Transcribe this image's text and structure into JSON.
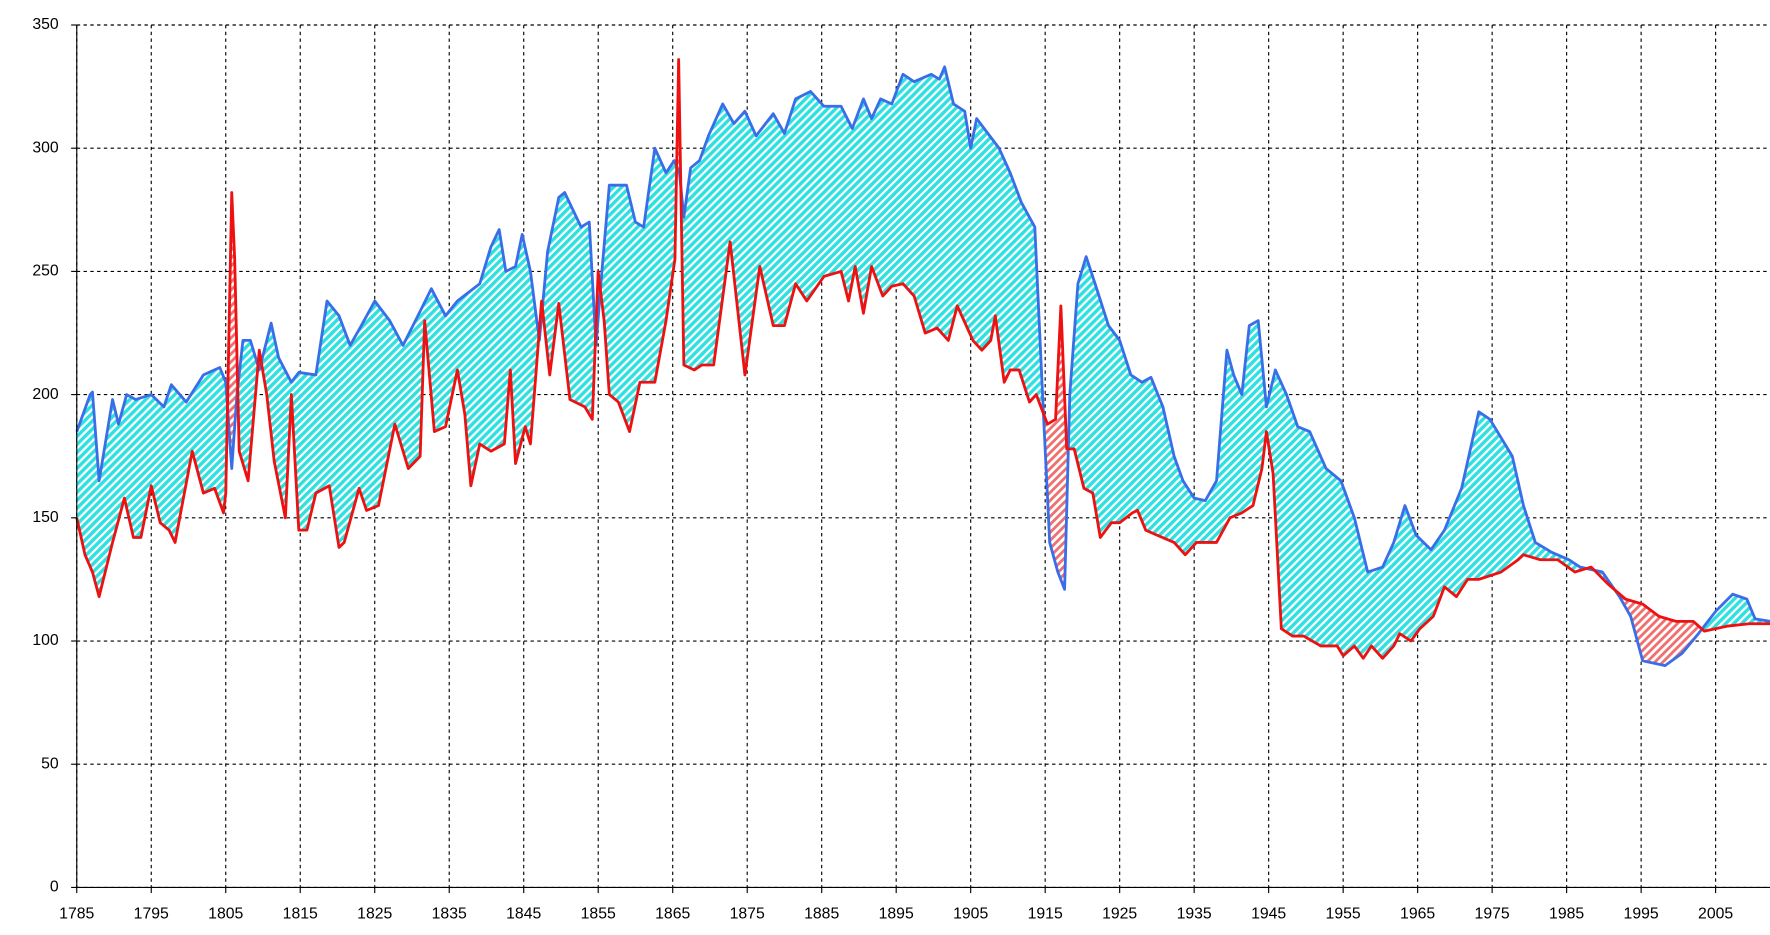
{
  "chart_data": {
    "type": "line",
    "xlim": [
      1785,
      2012.3
    ],
    "ylim": [
      0,
      350
    ],
    "xticks": [
      1785,
      1795,
      1805,
      1815,
      1825,
      1835,
      1845,
      1855,
      1865,
      1875,
      1885,
      1895,
      1905,
      1915,
      1925,
      1935,
      1945,
      1955,
      1965,
      1975,
      1985,
      1995,
      2005
    ],
    "yticks": [
      0,
      50,
      100,
      150,
      200,
      250,
      300,
      350
    ],
    "grid": true,
    "grid_style": "dashed",
    "fill_between": {
      "above_color": "#2ee0e0",
      "below_color": "#f07070"
    },
    "series": [
      {
        "color": "#3a6ee8",
        "x": [
          1785.0,
          1786.8,
          1787.1,
          1788.0,
          1789.8,
          1790.6,
          1791.7,
          1792.9,
          1795.0,
          1796.7,
          1797.7,
          1799.7,
          1802.0,
          1804.2,
          1805.0,
          1805.8,
          1806.5,
          1807.3,
          1808.3,
          1809.5,
          1811.1,
          1812.1,
          1813.8,
          1814.8,
          1817.1,
          1818.6,
          1820.2,
          1821.7,
          1823.2,
          1825.0,
          1827.0,
          1828.8,
          1830.8,
          1832.6,
          1834.5,
          1836.1,
          1839.1,
          1840.6,
          1841.7,
          1842.6,
          1843.9,
          1844.8,
          1845.9,
          1847.1,
          1848.2,
          1849.7,
          1850.5,
          1852.7,
          1853.8,
          1854.7,
          1855.5,
          1856.5,
          1858.8,
          1860.0,
          1861.1,
          1862.6,
          1864.1,
          1865.2,
          1865.9,
          1866.5,
          1867.4,
          1868.6,
          1869.8,
          1871.7,
          1873.2,
          1874.7,
          1876.2,
          1878.5,
          1880.0,
          1881.5,
          1883.5,
          1885.3,
          1887.6,
          1889.1,
          1890.6,
          1891.7,
          1892.9,
          1894.4,
          1895.9,
          1897.4,
          1899.7,
          1900.8,
          1901.5,
          1902.7,
          1904.2,
          1905.0,
          1905.8,
          1907.3,
          1908.8,
          1910.3,
          1911.8,
          1913.6,
          1914.8,
          1915.6,
          1916.7,
          1917.6,
          1918.3,
          1919.4,
          1920.5,
          1921.7,
          1923.5,
          1925.0,
          1926.5,
          1928.0,
          1929.2,
          1930.8,
          1932.3,
          1933.5,
          1935.0,
          1936.5,
          1938.0,
          1939.4,
          1940.3,
          1941.4,
          1942.4,
          1943.6,
          1944.7,
          1945.9,
          1947.4,
          1948.9,
          1950.5,
          1952.7,
          1954.7,
          1956.5,
          1958.3,
          1960.3,
          1961.8,
          1963.3,
          1964.8,
          1966.8,
          1968.6,
          1970.9,
          1973.2,
          1974.7,
          1977.7,
          1979.2,
          1980.8,
          1983.0,
          1985.3,
          1986.8,
          1989.8,
          1992.1,
          1993.6,
          1995.2,
          1998.2,
          2000.5,
          2002.7,
          2005.0,
          2007.3,
          2009.2,
          2010.3,
          2012.3
        ],
        "values": [
          185,
          200,
          201,
          165,
          198,
          188,
          200,
          198,
          200,
          195,
          204,
          197,
          208,
          211,
          205,
          170,
          200,
          222,
          222,
          210,
          229,
          215,
          205,
          209,
          208,
          238,
          232,
          220,
          228,
          238,
          230,
          220,
          232,
          243,
          232,
          238,
          245,
          260,
          267,
          250,
          252,
          265,
          250,
          222,
          258,
          280,
          282,
          268,
          270,
          220,
          250,
          285,
          285,
          270,
          268,
          300,
          290,
          295,
          290,
          272,
          292,
          295,
          305,
          318,
          310,
          315,
          305,
          314,
          306,
          320,
          323,
          317,
          317,
          308,
          320,
          312,
          320,
          318,
          330,
          327,
          330,
          328,
          333,
          318,
          315,
          300,
          312,
          306,
          300,
          290,
          278,
          268,
          190,
          140,
          128,
          121,
          200,
          245,
          256,
          245,
          228,
          222,
          208,
          205,
          207,
          195,
          175,
          165,
          158,
          157,
          165,
          218,
          208,
          200,
          228,
          230,
          195,
          210,
          200,
          187,
          185,
          170,
          165,
          150,
          128,
          130,
          140,
          155,
          143,
          137,
          145,
          162,
          193,
          190,
          175,
          155,
          140,
          136,
          133,
          130,
          128,
          118,
          110,
          92,
          90,
          95,
          103,
          112,
          119,
          117,
          109,
          108
        ]
      },
      {
        "color": "#ee1111",
        "x": [
          1785.0,
          1786.1,
          1787.1,
          1788.0,
          1789.8,
          1791.4,
          1792.6,
          1793.6,
          1795.0,
          1796.2,
          1797.4,
          1798.2,
          1800.5,
          1802.0,
          1803.5,
          1804.7,
          1805.0,
          1805.8,
          1806.2,
          1806.8,
          1808.0,
          1809.5,
          1810.5,
          1811.5,
          1813.0,
          1813.8,
          1814.8,
          1815.9,
          1817.1,
          1818.9,
          1820.2,
          1820.9,
          1822.9,
          1823.9,
          1825.5,
          1827.7,
          1829.5,
          1831.1,
          1831.7,
          1833.0,
          1834.5,
          1836.1,
          1837.1,
          1837.9,
          1839.1,
          1840.6,
          1842.4,
          1843.2,
          1843.9,
          1845.2,
          1845.9,
          1847.4,
          1848.5,
          1849.7,
          1851.2,
          1853.2,
          1854.2,
          1855.0,
          1855.8,
          1856.5,
          1857.7,
          1859.2,
          1860.6,
          1862.6,
          1864.1,
          1865.3,
          1865.8,
          1866.5,
          1867.9,
          1868.9,
          1870.5,
          1872.7,
          1874.7,
          1876.7,
          1878.5,
          1880.0,
          1881.5,
          1883.0,
          1885.3,
          1887.6,
          1888.6,
          1889.5,
          1890.6,
          1891.7,
          1893.2,
          1894.4,
          1895.9,
          1897.4,
          1898.9,
          1900.5,
          1902.0,
          1903.2,
          1905.3,
          1906.5,
          1907.7,
          1908.3,
          1909.5,
          1910.3,
          1911.5,
          1912.9,
          1913.8,
          1915.3,
          1916.4,
          1917.1,
          1917.9,
          1918.9,
          1920.2,
          1921.4,
          1922.4,
          1923.9,
          1925.0,
          1926.7,
          1927.4,
          1928.5,
          1930.0,
          1932.3,
          1933.8,
          1935.3,
          1938.0,
          1939.8,
          1941.4,
          1942.9,
          1944.1,
          1944.7,
          1945.6,
          1946.7,
          1948.2,
          1949.7,
          1952.0,
          1954.2,
          1955.0,
          1956.5,
          1957.7,
          1958.8,
          1960.3,
          1961.8,
          1962.6,
          1964.1,
          1965.3,
          1967.1,
          1968.6,
          1970.2,
          1971.7,
          1973.2,
          1976.2,
          1978.5,
          1979.2,
          1981.5,
          1983.8,
          1986.1,
          1988.3,
          1990.6,
          1992.9,
          1995.2,
          1997.4,
          1999.7,
          2002.0,
          2003.5,
          2006.5,
          2009.5,
          2012.3
        ],
        "values": [
          150,
          135,
          128,
          118,
          140,
          158,
          142,
          142,
          163,
          148,
          145,
          140,
          177,
          160,
          162,
          152,
          160,
          282,
          255,
          177,
          165,
          218,
          200,
          173,
          150,
          200,
          145,
          145,
          160,
          163,
          138,
          140,
          162,
          153,
          155,
          188,
          170,
          175,
          230,
          185,
          187,
          210,
          192,
          163,
          180,
          177,
          180,
          210,
          172,
          187,
          180,
          238,
          208,
          237,
          198,
          195,
          190,
          250,
          230,
          200,
          197,
          185,
          205,
          205,
          230,
          255,
          336,
          212,
          210,
          212,
          212,
          262,
          208,
          252,
          228,
          228,
          245,
          238,
          248,
          250,
          238,
          252,
          233,
          252,
          240,
          244,
          245,
          240,
          225,
          227,
          222,
          236,
          222,
          218,
          222,
          232,
          205,
          210,
          210,
          197,
          200,
          188,
          190,
          236,
          178,
          178,
          162,
          160,
          142,
          148,
          148,
          152,
          153,
          145,
          143,
          140,
          135,
          140,
          140,
          150,
          152,
          155,
          170,
          185,
          168,
          105,
          102,
          102,
          98,
          98,
          94,
          98,
          93,
          98,
          93,
          98,
          103,
          100,
          105,
          110,
          122,
          118,
          125,
          125,
          128,
          133,
          135,
          133,
          133,
          128,
          130,
          123,
          117,
          115,
          110,
          108,
          108,
          104,
          106,
          107,
          107
        ]
      }
    ]
  }
}
